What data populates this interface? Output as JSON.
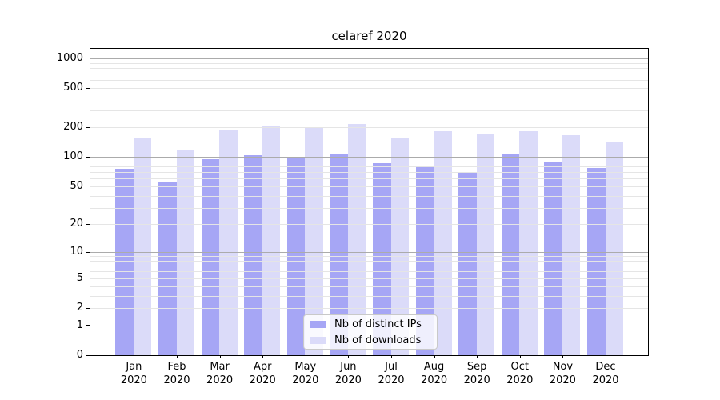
{
  "chart_data": {
    "type": "bar",
    "title": "celaref 2020",
    "categories": [
      "Jan",
      "Feb",
      "Mar",
      "Apr",
      "May",
      "Jun",
      "Jul",
      "Aug",
      "Sep",
      "Oct",
      "Nov",
      "Dec"
    ],
    "year": "2020",
    "series": [
      {
        "name": "Nb of distinct IPs",
        "color": "#a6a6f5",
        "values": [
          76,
          56,
          95,
          104,
          101,
          107,
          87,
          81,
          70,
          106,
          90,
          77
        ]
      },
      {
        "name": "Nb of downloads",
        "color": "#dbdbf9",
        "values": [
          158,
          119,
          191,
          206,
          202,
          216,
          153,
          184,
          174,
          183,
          168,
          141
        ]
      }
    ],
    "yscale": "log1p",
    "ylim": [
      0,
      1250
    ],
    "yticks": [
      0,
      1,
      2,
      5,
      10,
      20,
      50,
      100,
      200,
      500,
      1000
    ],
    "major_gridlines": [
      1,
      10,
      100,
      1000
    ],
    "minor_gridlines": [
      2,
      3,
      4,
      5,
      6,
      7,
      8,
      9,
      20,
      30,
      40,
      50,
      60,
      70,
      80,
      90,
      200,
      300,
      400,
      500,
      600,
      700,
      800,
      900
    ],
    "grid": true,
    "legend_position": "lower center"
  },
  "colors": {
    "background": "#ffffff",
    "spine": "#000000",
    "major_grid": "#ababab",
    "minor_grid": "#e5e5e5",
    "text": "#000000"
  }
}
